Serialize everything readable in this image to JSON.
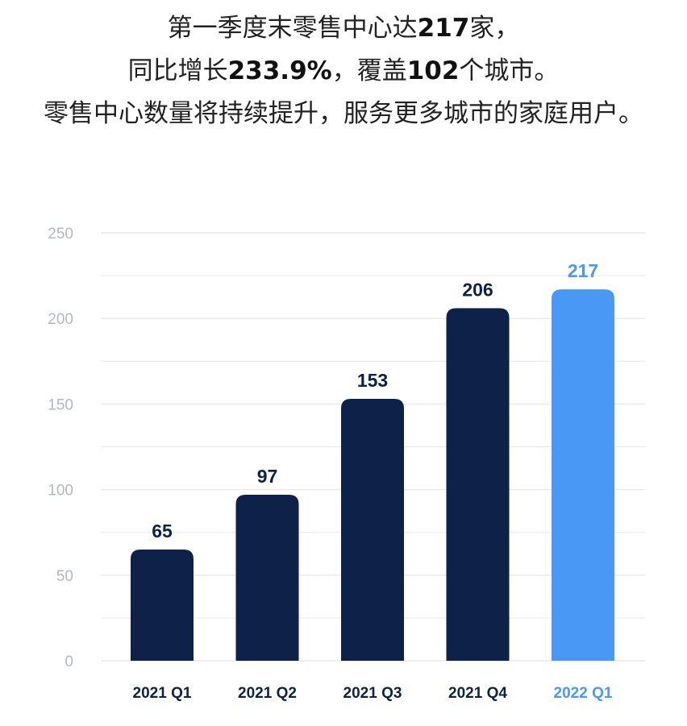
{
  "headline": {
    "line1": {
      "pre": "第一季度末零售中心达",
      "num": "217",
      "post": "家，"
    },
    "line2": {
      "pre": "同比增长",
      "num1": "233.9%",
      "mid": "，覆盖",
      "num2": "102",
      "post": "个城市。"
    },
    "line3": "零售中心数量将持续提升，服务更多城市的家庭用户。"
  },
  "chart_data": {
    "type": "bar",
    "categories": [
      "2021 Q1",
      "2021 Q2",
      "2021 Q3",
      "2021 Q4",
      "2022 Q1"
    ],
    "values": [
      65,
      97,
      153,
      206,
      217
    ],
    "title": "",
    "xlabel": "",
    "ylabel": "",
    "ylim": [
      0,
      250
    ],
    "yticks": [
      0,
      50,
      100,
      150,
      200,
      250
    ],
    "grid": true,
    "data_labels": true,
    "colors": [
      "#0d2149",
      "#0d2149",
      "#0d2149",
      "#0d2149",
      "#4a98f5"
    ],
    "grid_color": "#e7e9ec",
    "tick_color": "#b4b8bf"
  }
}
